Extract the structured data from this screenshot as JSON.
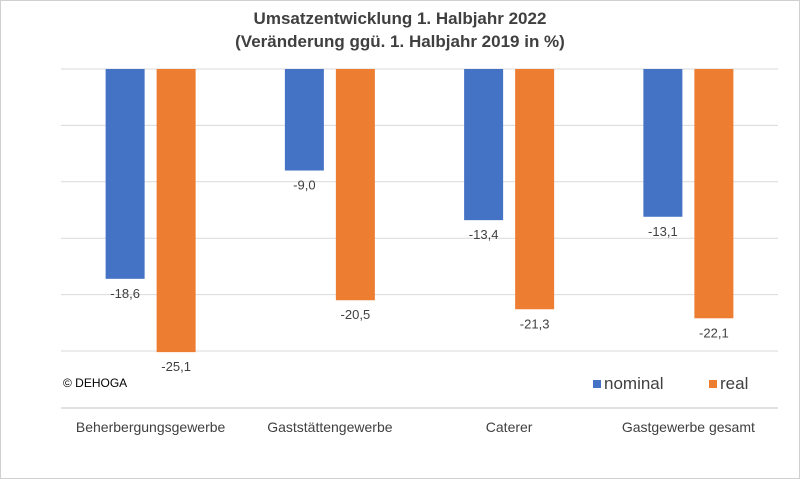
{
  "chart_data": {
    "type": "bar",
    "title": "Umsatzentwicklung 1. Halbjahr 2022",
    "subtitle": "(Veränderung ggü. 1. Halbjahr 2019 in %)",
    "categories": [
      "Beherbergungsgewerbe",
      "Gaststättengewerbe",
      "Caterer",
      "Gastgewerbe gesamt"
    ],
    "series": [
      {
        "name": "nominal",
        "color": "#4472c4",
        "values": [
          -18.6,
          -9.0,
          -13.4,
          -13.1
        ],
        "labels": [
          "-18,6",
          "-9,0",
          "-13,4",
          "-13,1"
        ]
      },
      {
        "name": "real",
        "color": "#ed7d31",
        "values": [
          -25.1,
          -20.5,
          -21.3,
          -22.1
        ],
        "labels": [
          "-25,1",
          "-20,5",
          "-21,3",
          "-22,1"
        ]
      }
    ],
    "ylim": [
      -25,
      0
    ],
    "grid": true,
    "legend": "bottom-right",
    "source": "© DEHOGA"
  }
}
